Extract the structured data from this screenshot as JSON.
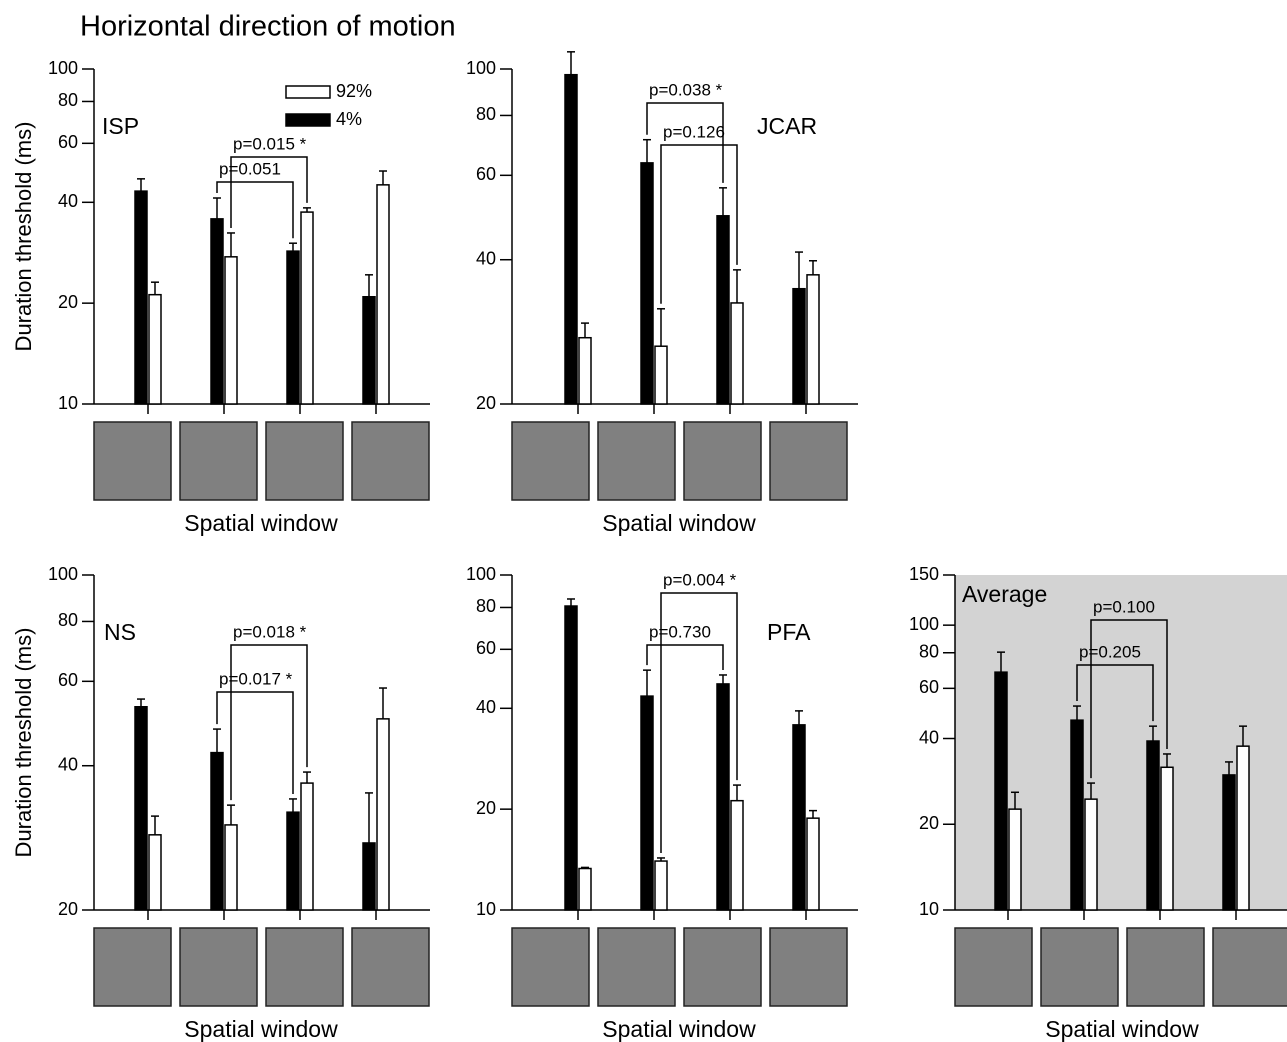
{
  "title": "Horizontal direction of motion",
  "chart_data": [
    {
      "type": "bar",
      "label": "ISP",
      "xlabel": "Spatial window",
      "ylabel": "Duration threshold (ms)",
      "categories": [
        null,
        null,
        null,
        null
      ],
      "log_y": true,
      "ylim": [
        10,
        100
      ],
      "yticks": [
        10,
        20,
        40,
        60,
        80,
        100
      ],
      "legend": "upper center",
      "series": [
        {
          "name": "4%",
          "color": "#000000",
          "values": [
            43.2,
            35.7,
            28.6,
            20.9
          ],
          "errors": [
            3.8,
            5.5,
            1.6,
            3.4
          ]
        },
        {
          "name": "92%",
          "color": "#ffffff",
          "values": [
            21.2,
            27.5,
            37.4,
            45.1
          ],
          "errors": [
            1.9,
            4.9,
            1.1,
            4.5
          ]
        }
      ],
      "annotations": [
        "p=0.051",
        "p=0.015 *"
      ]
    },
    {
      "type": "bar",
      "label": "JCAR",
      "xlabel": "Spatial window",
      "categories": [
        null,
        null,
        null,
        null
      ],
      "log_y": true,
      "ylim": [
        20,
        100
      ],
      "yticks": [
        20,
        40,
        60,
        80,
        100
      ],
      "series": [
        {
          "color": "#000000",
          "values": [
            97.3,
            63.7,
            49.4,
            34.8
          ],
          "errors": [
            11.3,
            7.5,
            7.1,
            6.7
          ]
        },
        {
          "color": "#ffffff",
          "values": [
            27.5,
            26.4,
            32.5,
            37.2
          ],
          "errors": [
            2.0,
            5.2,
            5.6,
            2.6
          ]
        }
      ],
      "annotations": [
        "p=0.038 *",
        "p=0.126"
      ]
    },
    {
      "type": "bar",
      "label": "NS",
      "xlabel": "Spatial window",
      "ylabel": "Duration threshold (ms)",
      "categories": [
        null,
        null,
        null,
        null
      ],
      "log_y": true,
      "ylim": [
        20,
        100
      ],
      "yticks": [
        20,
        40,
        60,
        80,
        100
      ],
      "series": [
        {
          "color": "#000000",
          "values": [
            53.1,
            42.6,
            32.0,
            27.6
          ],
          "errors": [
            2.0,
            5.1,
            2.1,
            7.5
          ]
        },
        {
          "color": "#ffffff",
          "values": [
            28.7,
            30.1,
            36.8,
            50.1
          ],
          "errors": [
            2.7,
            3.0,
            2.0,
            8.0
          ]
        }
      ],
      "annotations": [
        "p=0.017 *",
        "p=0.018 *"
      ]
    },
    {
      "type": "bar",
      "label": "PFA",
      "xlabel": "Spatial window",
      "categories": [
        null,
        null,
        null,
        null
      ],
      "log_y": true,
      "ylim": [
        10,
        100
      ],
      "yticks": [
        10,
        20,
        40,
        60,
        80,
        100
      ],
      "series": [
        {
          "color": "#000000",
          "values": [
            80.8,
            43.5,
            47.3,
            35.7
          ],
          "errors": [
            4.0,
            8.5,
            3.0,
            3.6
          ]
        },
        {
          "color": "#ffffff",
          "values": [
            13.3,
            14.0,
            21.2,
            18.8
          ],
          "errors": [
            0.1,
            0.3,
            2.4,
            1.0
          ]
        }
      ],
      "annotations": [
        "p=0.730",
        "p=0.004 *"
      ]
    },
    {
      "type": "bar",
      "label": "Average",
      "xlabel": "Spatial window",
      "background": "#d3d3d3",
      "categories": [
        null,
        null,
        null,
        null
      ],
      "log_y": true,
      "ylim": [
        10,
        150
      ],
      "yticks": [
        10,
        20,
        40,
        60,
        80,
        100,
        150
      ],
      "series": [
        {
          "color": "#000000",
          "values": [
            68.4,
            46.4,
            39.2,
            29.8
          ],
          "errors": [
            12.0,
            5.6,
            5.0,
            3.3
          ]
        },
        {
          "color": "#ffffff",
          "values": [
            22.6,
            24.5,
            31.7,
            37.6
          ],
          "errors": [
            3.3,
            3.4,
            3.6,
            6.6
          ]
        }
      ],
      "annotations": [
        "p=0.205",
        "p=0.100"
      ]
    }
  ]
}
